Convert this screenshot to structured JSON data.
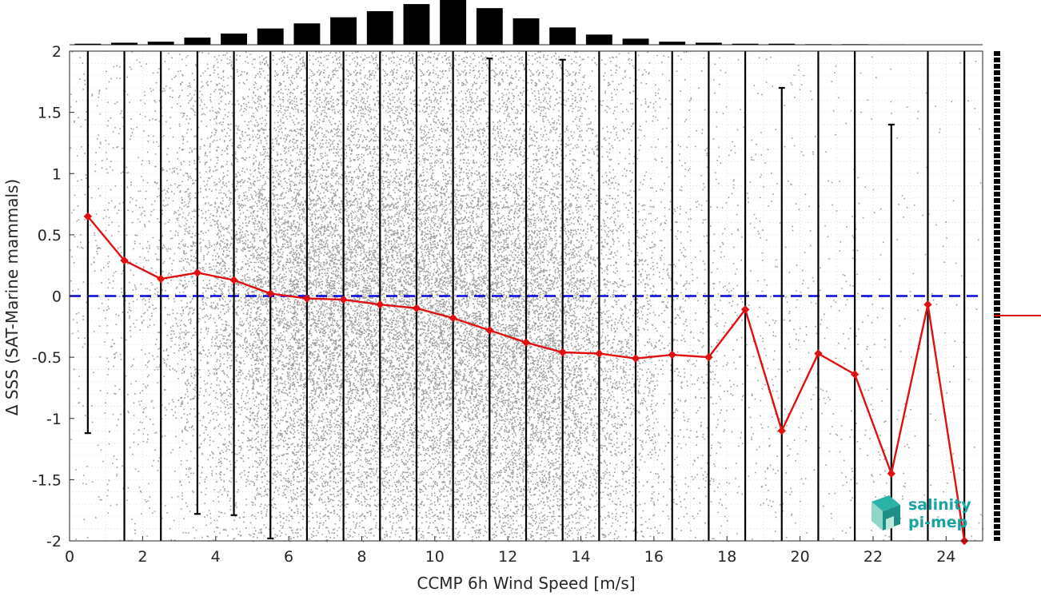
{
  "chart_data": {
    "type": "scatter",
    "xlabel": "CCMP 6h Wind Speed [m/s]",
    "ylabel": "Δ SSS (SAT-Marine mammals)",
    "xlim": [
      0,
      25
    ],
    "ylim": [
      -2,
      2
    ],
    "x_ticks": [
      0,
      2,
      4,
      6,
      8,
      10,
      12,
      14,
      16,
      18,
      20,
      22,
      24
    ],
    "y_ticks": [
      -2,
      -1.5,
      -1,
      -0.5,
      0,
      0.5,
      1,
      1.5,
      2
    ],
    "x_tick_labels": [
      "0",
      "2",
      "4",
      "6",
      "8",
      "10",
      "12",
      "14",
      "16",
      "18",
      "20",
      "22",
      "24"
    ],
    "y_tick_labels": [
      "-2",
      "-1.5",
      "-1",
      "-0.5",
      "0",
      "0.5",
      "1",
      "1.5",
      "2"
    ],
    "grid": true,
    "zero_line": {
      "y": 0,
      "color": "#0000dd",
      "style": "dashed"
    },
    "bins": {
      "centers": [
        0.5,
        1.5,
        2.5,
        3.5,
        4.5,
        5.5,
        6.5,
        7.5,
        8.5,
        9.5,
        10.5,
        11.5,
        12.5,
        13.5,
        14.5,
        15.5,
        16.5,
        17.5,
        18.5,
        19.5,
        20.5,
        21.5,
        22.5,
        23.5,
        24.5
      ],
      "mean": [
        0.65,
        0.29,
        0.14,
        0.19,
        0.13,
        0.02,
        -0.02,
        -0.03,
        -0.07,
        -0.1,
        -0.18,
        -0.28,
        -0.38,
        -0.46,
        -0.47,
        -0.51,
        -0.48,
        -0.5,
        -0.11,
        -1.1,
        -0.47,
        -0.64,
        -1.45,
        -0.07,
        -2.0
      ],
      "err_low": [
        -1.12,
        -2,
        -2,
        -1.78,
        -1.79,
        -1.98,
        -2,
        -2,
        -2,
        -2,
        -2,
        -2,
        -2,
        -2,
        -2,
        -2,
        -2,
        -2,
        -2,
        -2,
        -2,
        -2,
        -2,
        -2,
        -2
      ],
      "err_high": [
        2,
        2,
        2,
        2,
        2,
        2,
        2,
        2,
        2,
        2,
        2,
        1.94,
        2,
        1.93,
        2,
        2,
        2,
        2,
        2,
        1.7,
        2,
        2,
        1.4,
        2,
        2
      ],
      "histogram_counts": [
        1,
        2,
        3,
        7,
        11,
        16,
        21,
        27,
        33,
        40,
        44,
        36,
        26,
        17,
        10,
        6,
        3,
        2,
        1,
        1,
        0.5,
        0.5,
        0.3,
        0,
        0
      ]
    },
    "mean_line": {
      "color": "#e01010",
      "marker": "diamond"
    },
    "scatter_color": "#8c8c8c",
    "right_marginal": {
      "line_y": -0.16,
      "color": "#e01010"
    },
    "logo": {
      "line1": "salinity",
      "line2": "pi-mep",
      "color": "#1aa3a3"
    }
  }
}
